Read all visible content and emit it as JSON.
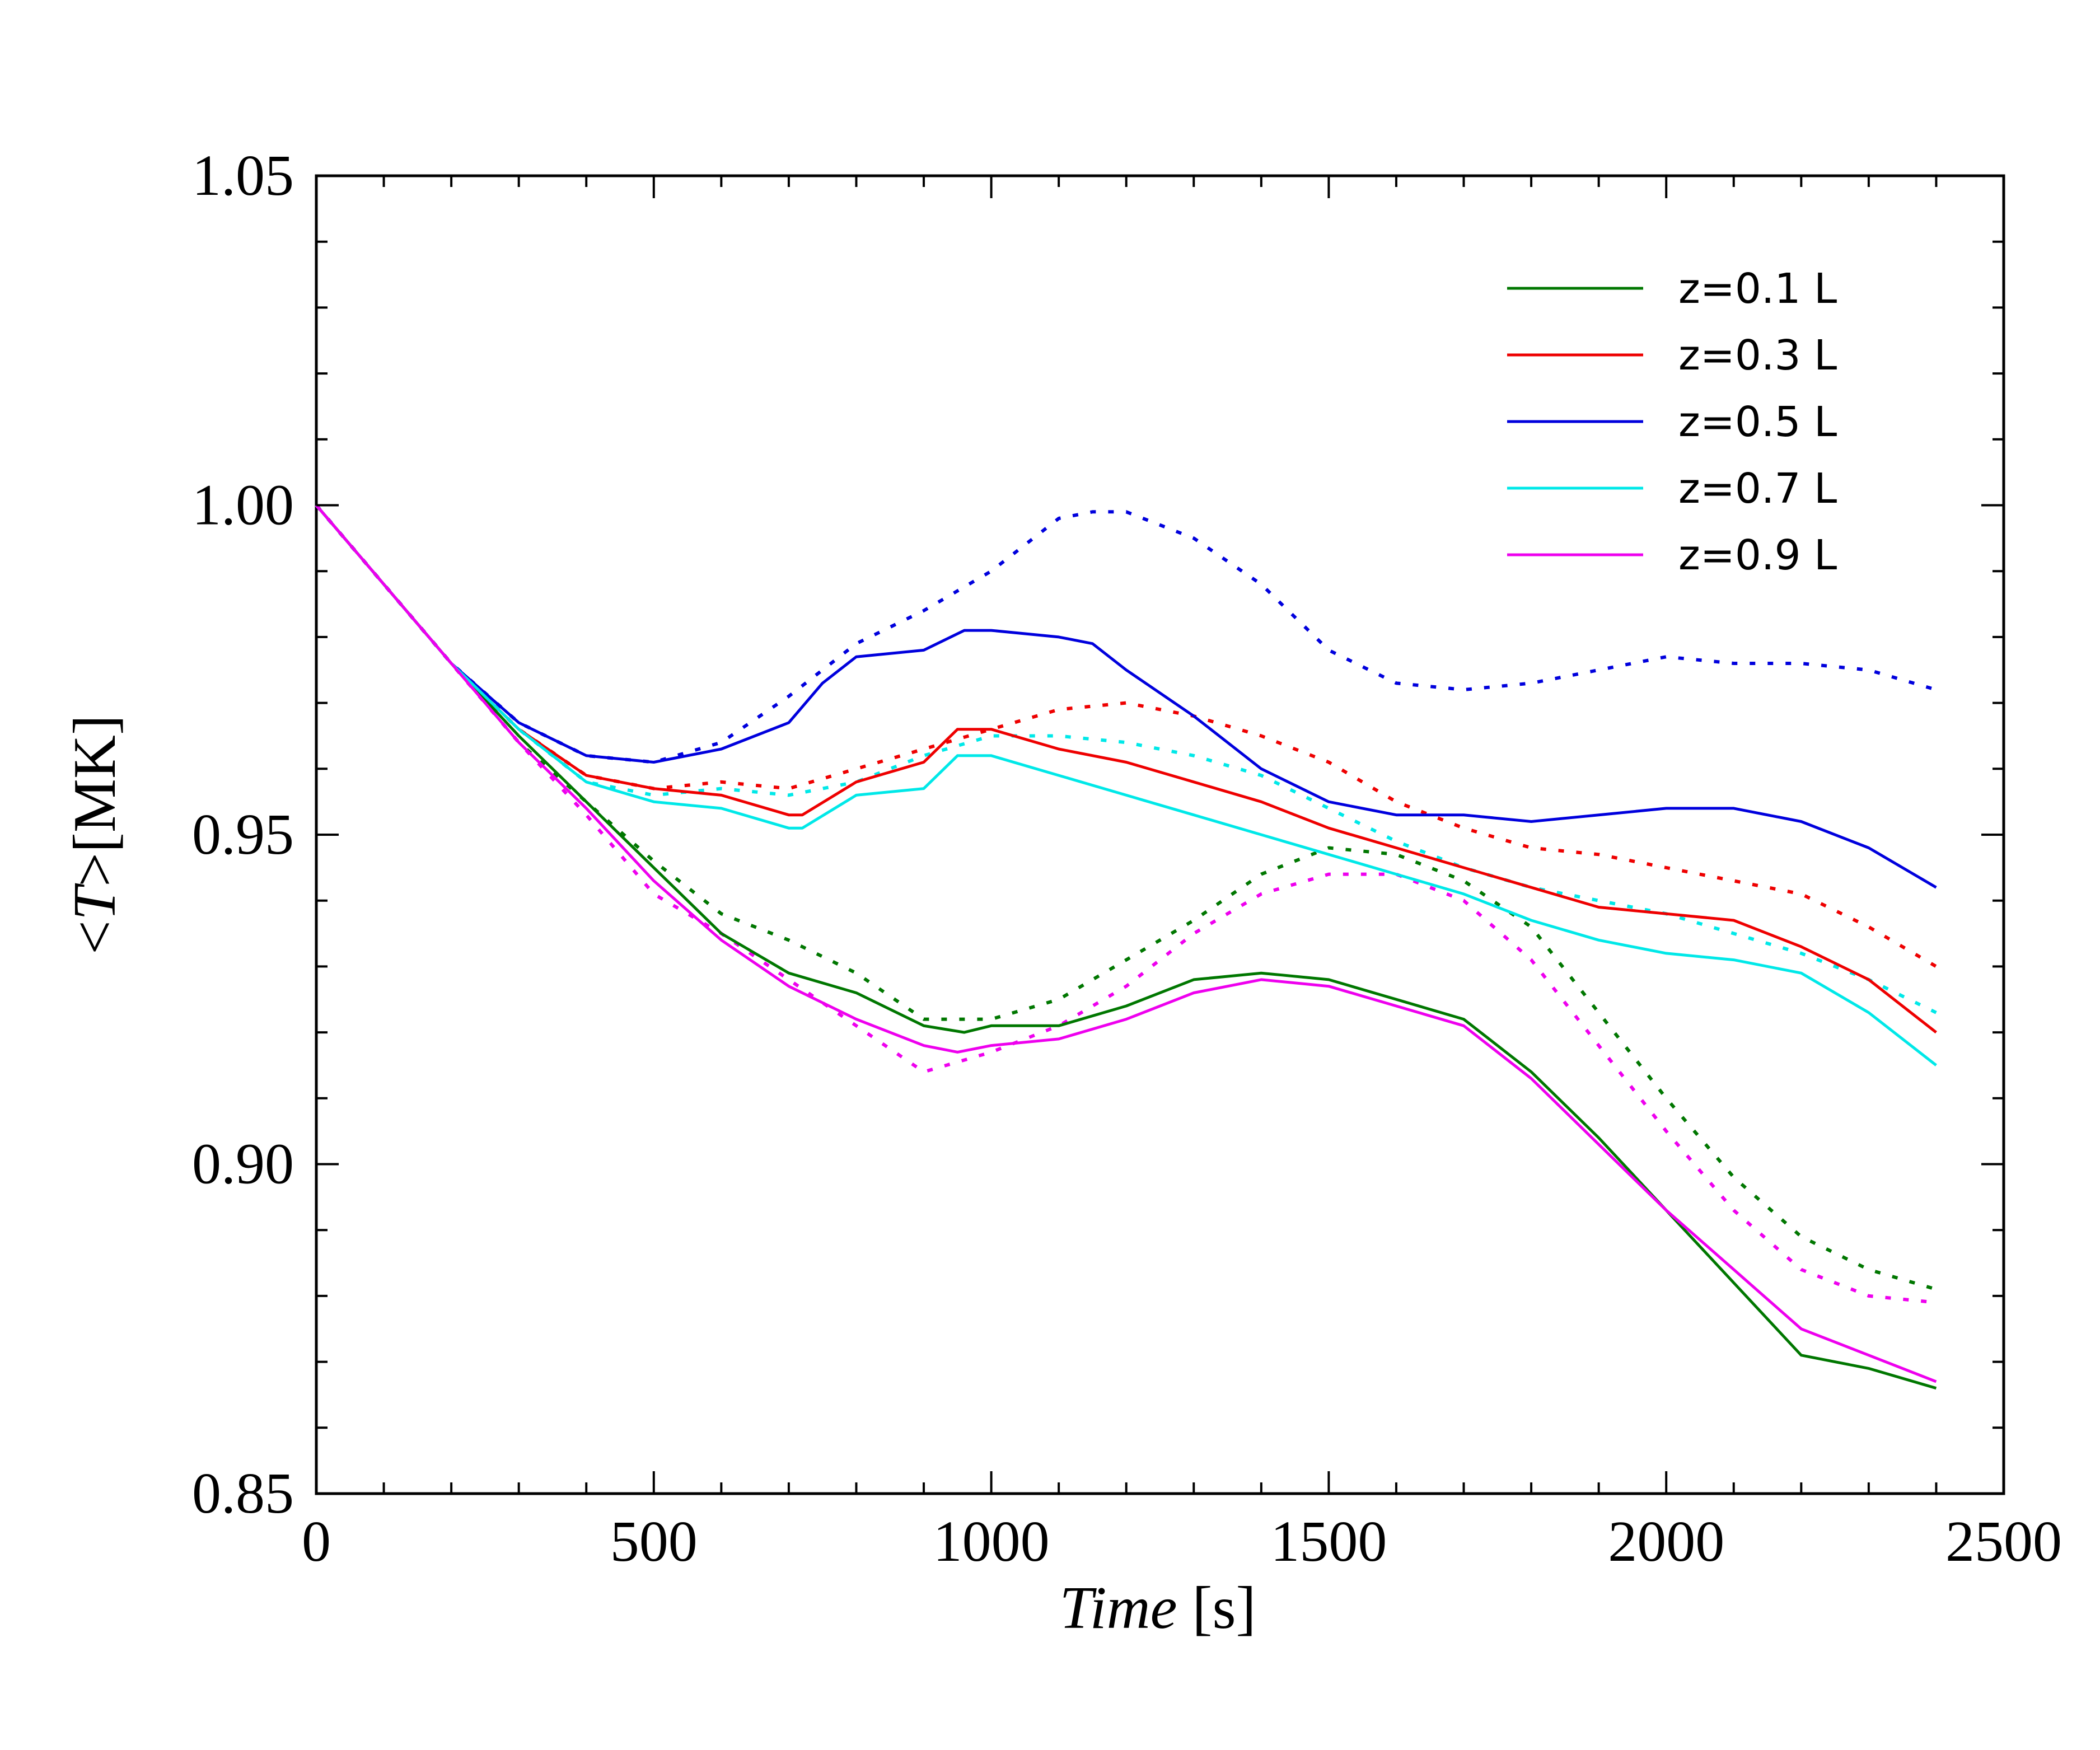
{
  "chart_data": {
    "type": "line",
    "xlabel": {
      "italic": "Time",
      "unit": "[s]"
    },
    "ylabel": {
      "pre": "<",
      "italic": "T",
      "post": ">[MK]"
    },
    "xlim": [
      0,
      2500
    ],
    "ylim": [
      0.85,
      1.05
    ],
    "xticks": [
      "0",
      "500",
      "1000",
      "1500",
      "2000",
      "2500"
    ],
    "xtick_values": [
      0,
      500,
      1000,
      1500,
      2000,
      2500
    ],
    "yticks": [
      "0.85",
      "0.90",
      "0.95",
      "1.00",
      "1.05"
    ],
    "ytick_values": [
      0.85,
      0.9,
      0.95,
      1.0,
      1.05
    ],
    "grid": false,
    "legend_position": "top-right",
    "series": [
      {
        "name": "z=0.1 L",
        "color": "#007700",
        "style": "solid",
        "x": [
          0,
          100,
          200,
          300,
          400,
          500,
          600,
          700,
          800,
          900,
          960,
          1000,
          1100,
          1200,
          1300,
          1400,
          1500,
          1600,
          1700,
          1800,
          1900,
          2000,
          2100,
          2200,
          2300,
          2400
        ],
        "y": [
          1.0,
          0.988,
          0.976,
          0.965,
          0.955,
          0.945,
          0.935,
          0.929,
          0.926,
          0.921,
          0.92,
          0.921,
          0.921,
          0.924,
          0.928,
          0.929,
          0.928,
          0.925,
          0.922,
          0.914,
          0.904,
          0.893,
          0.882,
          0.871,
          0.869,
          0.866
        ]
      },
      {
        "name": "z=0.3 L",
        "color": "#ee0000",
        "style": "solid",
        "x": [
          0,
          100,
          200,
          300,
          400,
          500,
          600,
          700,
          720,
          800,
          900,
          950,
          1000,
          1100,
          1200,
          1300,
          1400,
          1500,
          1600,
          1700,
          1800,
          1900,
          2000,
          2100,
          2200,
          2300,
          2400
        ],
        "y": [
          1.0,
          0.988,
          0.976,
          0.966,
          0.959,
          0.957,
          0.956,
          0.953,
          0.953,
          0.958,
          0.961,
          0.966,
          0.966,
          0.963,
          0.961,
          0.958,
          0.955,
          0.951,
          0.948,
          0.945,
          0.942,
          0.939,
          0.938,
          0.937,
          0.933,
          0.928,
          0.92
        ]
      },
      {
        "name": "z=0.5 L",
        "color": "#0000dd",
        "style": "solid",
        "x": [
          0,
          100,
          200,
          300,
          400,
          500,
          600,
          700,
          750,
          800,
          900,
          960,
          1000,
          1100,
          1150,
          1200,
          1300,
          1400,
          1500,
          1600,
          1700,
          1800,
          1900,
          2000,
          2100,
          2200,
          2300,
          2400
        ],
        "y": [
          1.0,
          0.988,
          0.976,
          0.967,
          0.962,
          0.961,
          0.963,
          0.967,
          0.973,
          0.977,
          0.978,
          0.981,
          0.981,
          0.98,
          0.979,
          0.975,
          0.968,
          0.96,
          0.955,
          0.953,
          0.953,
          0.952,
          0.953,
          0.954,
          0.954,
          0.952,
          0.948,
          0.942
        ]
      },
      {
        "name": "z=0.7 L",
        "color": "#00e8e8",
        "style": "solid",
        "x": [
          0,
          100,
          200,
          300,
          400,
          500,
          600,
          700,
          720,
          800,
          900,
          950,
          1000,
          1100,
          1200,
          1300,
          1400,
          1500,
          1600,
          1700,
          1800,
          1900,
          2000,
          2100,
          2200,
          2300,
          2400
        ],
        "y": [
          1.0,
          0.988,
          0.976,
          0.966,
          0.958,
          0.955,
          0.954,
          0.951,
          0.951,
          0.956,
          0.957,
          0.962,
          0.962,
          0.959,
          0.956,
          0.953,
          0.95,
          0.947,
          0.944,
          0.941,
          0.937,
          0.934,
          0.932,
          0.931,
          0.929,
          0.923,
          0.915
        ]
      },
      {
        "name": "z=0.9 L",
        "color": "#ee00ee",
        "style": "solid",
        "x": [
          0,
          100,
          200,
          300,
          400,
          500,
          600,
          700,
          800,
          900,
          950,
          1000,
          1100,
          1200,
          1300,
          1400,
          1500,
          1600,
          1700,
          1800,
          1900,
          2000,
          2100,
          2200,
          2300,
          2400
        ],
        "y": [
          1.0,
          0.988,
          0.976,
          0.964,
          0.954,
          0.943,
          0.934,
          0.927,
          0.922,
          0.918,
          0.917,
          0.918,
          0.919,
          0.922,
          0.926,
          0.928,
          0.927,
          0.924,
          0.921,
          0.913,
          0.903,
          0.893,
          0.884,
          0.875,
          0.871,
          0.867
        ]
      },
      {
        "name": "",
        "color": "#007700",
        "style": "dotted",
        "x": [
          0,
          100,
          200,
          300,
          400,
          500,
          600,
          700,
          800,
          900,
          1000,
          1100,
          1200,
          1300,
          1400,
          1500,
          1600,
          1700,
          1800,
          1900,
          2000,
          2100,
          2200,
          2300,
          2400
        ],
        "y": [
          1.0,
          0.988,
          0.976,
          0.964,
          0.955,
          0.946,
          0.938,
          0.934,
          0.929,
          0.922,
          0.922,
          0.925,
          0.931,
          0.937,
          0.944,
          0.948,
          0.947,
          0.943,
          0.936,
          0.923,
          0.91,
          0.898,
          0.889,
          0.884,
          0.881
        ]
      },
      {
        "name": "",
        "color": "#ee0000",
        "style": "dotted",
        "x": [
          0,
          100,
          200,
          300,
          400,
          500,
          600,
          700,
          800,
          900,
          1000,
          1100,
          1200,
          1300,
          1400,
          1500,
          1600,
          1700,
          1800,
          1900,
          2000,
          2100,
          2200,
          2300,
          2400
        ],
        "y": [
          1.0,
          0.988,
          0.976,
          0.966,
          0.959,
          0.957,
          0.958,
          0.957,
          0.96,
          0.963,
          0.966,
          0.969,
          0.97,
          0.968,
          0.965,
          0.961,
          0.955,
          0.951,
          0.948,
          0.947,
          0.945,
          0.943,
          0.941,
          0.936,
          0.93
        ]
      },
      {
        "name": "",
        "color": "#0000dd",
        "style": "dotted",
        "x": [
          0,
          100,
          200,
          300,
          400,
          500,
          600,
          700,
          800,
          900,
          1000,
          1100,
          1150,
          1200,
          1300,
          1400,
          1500,
          1600,
          1700,
          1800,
          1900,
          2000,
          2100,
          2200,
          2300,
          2400
        ],
        "y": [
          1.0,
          0.988,
          0.976,
          0.967,
          0.962,
          0.961,
          0.964,
          0.971,
          0.979,
          0.984,
          0.99,
          0.998,
          0.999,
          0.999,
          0.995,
          0.988,
          0.978,
          0.973,
          0.972,
          0.973,
          0.975,
          0.977,
          0.976,
          0.976,
          0.975,
          0.972
        ]
      },
      {
        "name": "",
        "color": "#00e8e8",
        "style": "dotted",
        "x": [
          0,
          100,
          200,
          300,
          400,
          500,
          600,
          700,
          800,
          900,
          1000,
          1100,
          1200,
          1300,
          1400,
          1500,
          1600,
          1700,
          1800,
          1900,
          2000,
          2100,
          2200,
          2300,
          2400
        ],
        "y": [
          1.0,
          0.988,
          0.976,
          0.966,
          0.958,
          0.956,
          0.957,
          0.956,
          0.958,
          0.962,
          0.965,
          0.965,
          0.964,
          0.962,
          0.959,
          0.954,
          0.949,
          0.945,
          0.942,
          0.94,
          0.938,
          0.935,
          0.932,
          0.928,
          0.923
        ]
      },
      {
        "name": "",
        "color": "#ee00ee",
        "style": "dotted",
        "x": [
          0,
          100,
          200,
          300,
          400,
          500,
          600,
          700,
          800,
          900,
          1000,
          1100,
          1200,
          1300,
          1400,
          1500,
          1600,
          1700,
          1800,
          1900,
          2000,
          2100,
          2200,
          2300,
          2400
        ],
        "y": [
          1.0,
          0.988,
          0.976,
          0.964,
          0.953,
          0.941,
          0.935,
          0.928,
          0.921,
          0.914,
          0.917,
          0.921,
          0.927,
          0.935,
          0.941,
          0.944,
          0.944,
          0.94,
          0.931,
          0.918,
          0.905,
          0.893,
          0.884,
          0.88,
          0.879
        ]
      }
    ]
  }
}
